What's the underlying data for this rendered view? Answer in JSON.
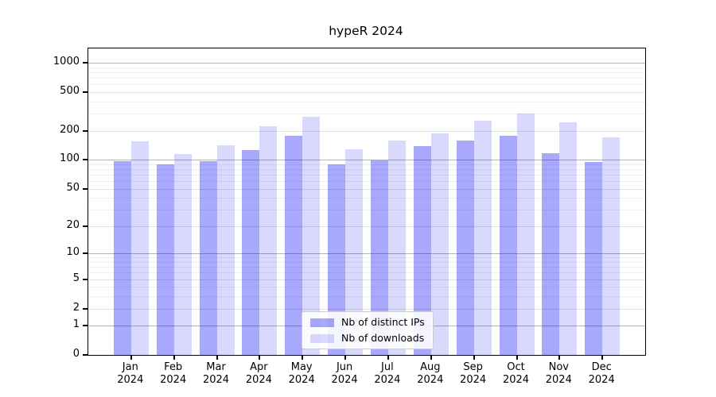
{
  "chart_data": {
    "type": "bar",
    "title": "hypeR 2024",
    "xlabel": "",
    "ylabel": "",
    "y_scale": "log1p",
    "grid": true,
    "legend_position": "lower center",
    "ylim": [
      0,
      1100
    ],
    "y_ticks": [
      0,
      1,
      2,
      5,
      10,
      20,
      50,
      100,
      200,
      500,
      1000
    ],
    "y_minor_gridlines": [
      3,
      4,
      6,
      7,
      8,
      9,
      30,
      40,
      60,
      70,
      80,
      90,
      300,
      400,
      600,
      700,
      800,
      900
    ],
    "categories": [
      "Jan 2024",
      "Feb 2024",
      "Mar 2024",
      "Apr 2024",
      "May 2024",
      "Jun 2024",
      "Jul 2024",
      "Aug 2024",
      "Sep 2024",
      "Oct 2024",
      "Nov 2024",
      "Dec 2024"
    ],
    "series": [
      {
        "name": "Nb of distinct IPs",
        "color": "rgba(0,0,250,0.34)",
        "values": [
          96,
          89,
          96,
          126,
          178,
          90,
          99,
          139,
          158,
          176,
          116,
          95
        ]
      },
      {
        "name": "Nb of downloads",
        "color": "rgba(0,0,250,0.15)",
        "values": [
          154,
          114,
          140,
          220,
          279,
          128,
          158,
          186,
          254,
          300,
          245,
          172
        ]
      }
    ]
  }
}
